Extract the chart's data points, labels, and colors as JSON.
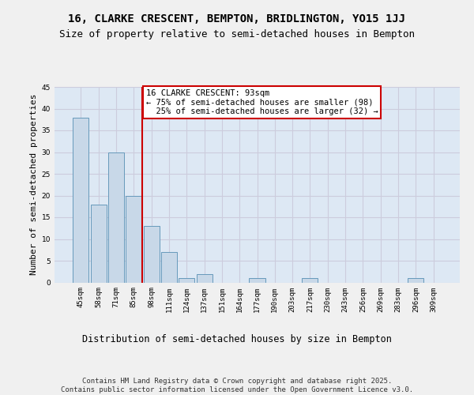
{
  "title1": "16, CLARKE CRESCENT, BEMPTON, BRIDLINGTON, YO15 1JJ",
  "title2": "Size of property relative to semi-detached houses in Bempton",
  "xlabel": "Distribution of semi-detached houses by size in Bempton",
  "ylabel": "Number of semi-detached properties",
  "categories": [
    "45sqm",
    "58sqm",
    "71sqm",
    "85sqm",
    "98sqm",
    "111sqm",
    "124sqm",
    "137sqm",
    "151sqm",
    "164sqm",
    "177sqm",
    "190sqm",
    "203sqm",
    "217sqm",
    "230sqm",
    "243sqm",
    "256sqm",
    "269sqm",
    "283sqm",
    "296sqm",
    "309sqm"
  ],
  "values": [
    38,
    18,
    30,
    20,
    13,
    7,
    1,
    2,
    0,
    0,
    1,
    0,
    0,
    1,
    0,
    0,
    0,
    0,
    0,
    1,
    0
  ],
  "bar_color": "#c8d8e8",
  "bar_edge_color": "#6699bb",
  "grid_color": "#ccccdd",
  "background_color": "#dde8f4",
  "fig_background": "#f0f0f0",
  "vline_color": "#cc0000",
  "vline_x_index": 3.5,
  "annotation_text": "16 CLARKE CRESCENT: 93sqm\n← 75% of semi-detached houses are smaller (98)\n  25% of semi-detached houses are larger (32) →",
  "annotation_box_color": "#cc0000",
  "ylim": [
    0,
    45
  ],
  "yticks": [
    0,
    5,
    10,
    15,
    20,
    25,
    30,
    35,
    40,
    45
  ],
  "footer": "Contains HM Land Registry data © Crown copyright and database right 2025.\nContains public sector information licensed under the Open Government Licence v3.0.",
  "title1_fontsize": 10,
  "title2_fontsize": 9,
  "xlabel_fontsize": 8.5,
  "ylabel_fontsize": 8,
  "tick_fontsize": 6.5,
  "annotation_fontsize": 7.5,
  "footer_fontsize": 6.5
}
